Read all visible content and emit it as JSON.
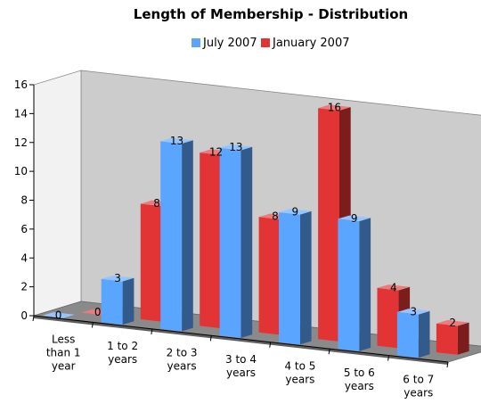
{
  "chart_data": {
    "type": "bar",
    "title": "Length of Membership - Distribution",
    "categories": [
      [
        "Less",
        "than 1",
        "year"
      ],
      [
        "1 to 2",
        "years"
      ],
      [
        "2 to 3",
        "years"
      ],
      [
        "3 to 4",
        "years"
      ],
      [
        "4 to 5",
        "years"
      ],
      [
        "5 to 6",
        "years"
      ],
      [
        "6 to 7",
        "years"
      ]
    ],
    "series": [
      {
        "name": "July 2007",
        "values": [
          0,
          3,
          13,
          13,
          9,
          9,
          3
        ],
        "color": "#5aa5ff"
      },
      {
        "name": "January 2007",
        "values": [
          0,
          8,
          12,
          8,
          16,
          4,
          2
        ],
        "color": "#e23434"
      }
    ],
    "ylim": [
      0,
      16
    ],
    "yticks": [
      0,
      2,
      4,
      6,
      8,
      10,
      12,
      14,
      16
    ],
    "legend": "top-center",
    "grid": false,
    "style": "3d-clustered",
    "wall_color": "#cccccc",
    "floor_color": "#8a8a8a"
  }
}
